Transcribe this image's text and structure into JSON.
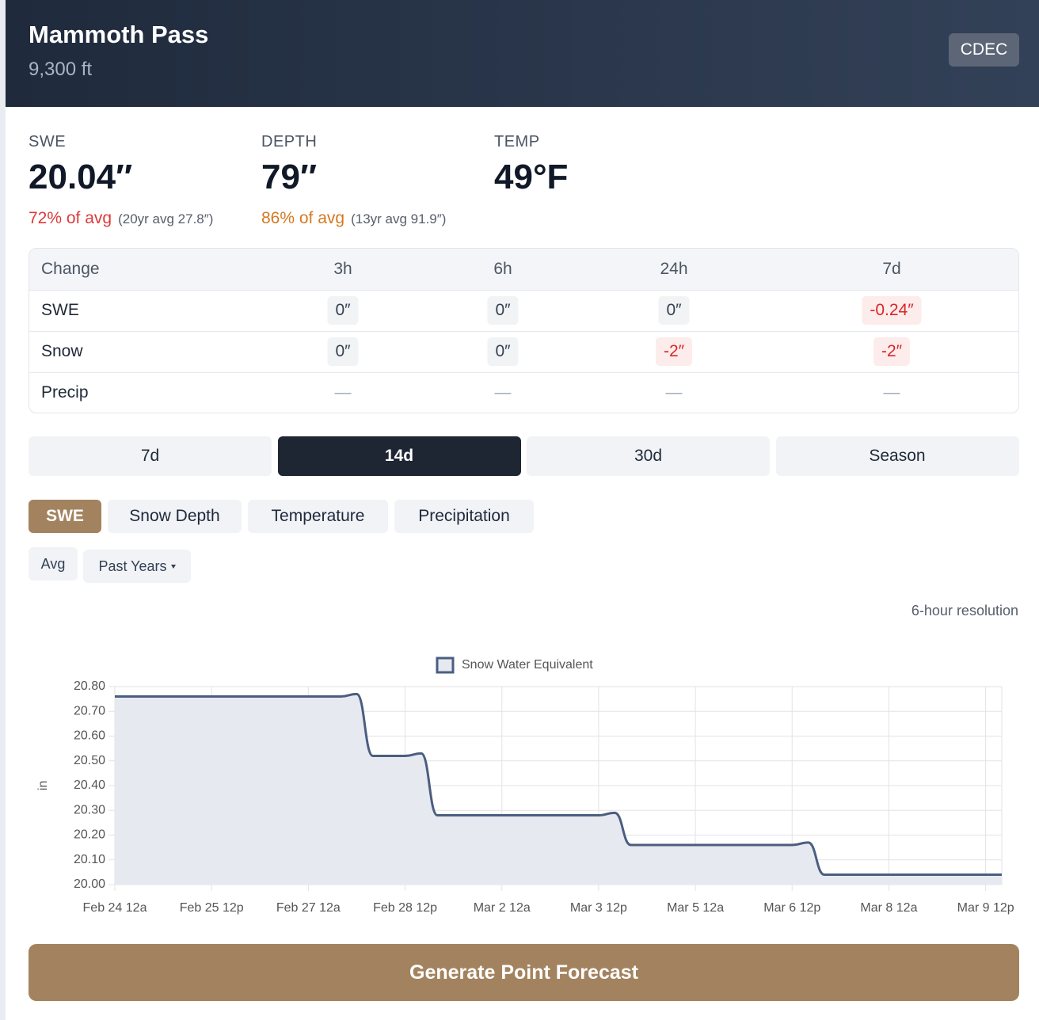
{
  "header": {
    "title": "Mammoth Pass",
    "subtitle": "9,300 ft",
    "badge": "CDEC"
  },
  "stats": [
    {
      "label": "SWE",
      "value": "20.04″",
      "percent": "72% of avg",
      "average": "(20yr avg 27.8″)",
      "color": "#dc3b3b"
    },
    {
      "label": "DEPTH",
      "value": "79″",
      "percent": "86% of avg",
      "average": "(13yr avg 91.9″)",
      "color": "#d4791f"
    },
    {
      "label": "TEMP",
      "value": "49°F"
    }
  ],
  "change_table": {
    "header": [
      "Change",
      "3h",
      "6h",
      "24h",
      "7d"
    ],
    "rows": [
      [
        "SWE",
        "0″",
        "0″",
        "0″",
        "-0.24″"
      ],
      [
        "Snow",
        "0″",
        "0″",
        "-2″",
        "-2″"
      ],
      [
        "Precip",
        "—",
        "—",
        "—",
        "—"
      ]
    ]
  },
  "range_tabs": {
    "items": [
      "7d",
      "14d",
      "30d",
      "Season"
    ],
    "active": 1
  },
  "metric_tabs": {
    "items": [
      "SWE",
      "Snow Depth",
      "Temperature",
      "Precipitation"
    ],
    "active": 0
  },
  "options": [
    "Avg",
    "Past Years"
  ],
  "resolution_note": "6-hour resolution",
  "chart_data": {
    "type": "line",
    "ylabel": "in",
    "categories": [
      "Feb 24 12a",
      null,
      null,
      null,
      null,
      null,
      "Feb 25 12p",
      null,
      null,
      null,
      null,
      null,
      "Feb 27 12a",
      null,
      null,
      null,
      null,
      null,
      "Feb 28 12p",
      null,
      null,
      null,
      null,
      null,
      "Mar 2 12a",
      null,
      null,
      null,
      null,
      null,
      "Mar 3 12p",
      null,
      null,
      null,
      null,
      null,
      "Mar 5 12a",
      null,
      null,
      null,
      null,
      null,
      "Mar 6 12p",
      null,
      null,
      null,
      null,
      null,
      "Mar 8 12a",
      null,
      null,
      null,
      null,
      null,
      "Mar 9 12p",
      null
    ],
    "series": [
      {
        "name": "Snow Water Equivalent",
        "color": "#4b5e80",
        "fill": "#e6e9ef",
        "values": [
          20.76,
          20.76,
          20.76,
          20.76,
          20.76,
          20.76,
          20.76,
          20.76,
          20.76,
          20.76,
          20.76,
          20.76,
          20.76,
          20.76,
          20.76,
          20.77,
          20.52,
          20.52,
          20.52,
          20.53,
          20.28,
          20.28,
          20.28,
          20.28,
          20.28,
          20.28,
          20.28,
          20.28,
          20.28,
          20.28,
          20.28,
          20.29,
          20.16,
          20.16,
          20.16,
          20.16,
          20.16,
          20.16,
          20.16,
          20.16,
          20.16,
          20.16,
          20.16,
          20.17,
          20.04,
          20.04,
          20.04,
          20.04,
          20.04,
          20.04,
          20.04,
          20.04,
          20.04,
          20.04,
          20.04,
          20.04
        ]
      }
    ],
    "ylim": [
      20.0,
      20.8
    ],
    "yticks": [
      {
        "value": 20.0,
        "label": "20.00"
      },
      {
        "value": 20.1,
        "label": "20.10"
      },
      {
        "value": 20.2,
        "label": "20.20"
      },
      {
        "value": 20.3,
        "label": "20.30"
      },
      {
        "value": 20.4,
        "label": "20.40"
      },
      {
        "value": 20.5,
        "label": "20.50"
      },
      {
        "value": 20.6,
        "label": "20.60"
      },
      {
        "value": 20.7,
        "label": "20.70"
      },
      {
        "value": 20.8,
        "label": "20.80"
      }
    ],
    "grid": true,
    "legend": "top"
  },
  "button": "Generate Point Forecast"
}
